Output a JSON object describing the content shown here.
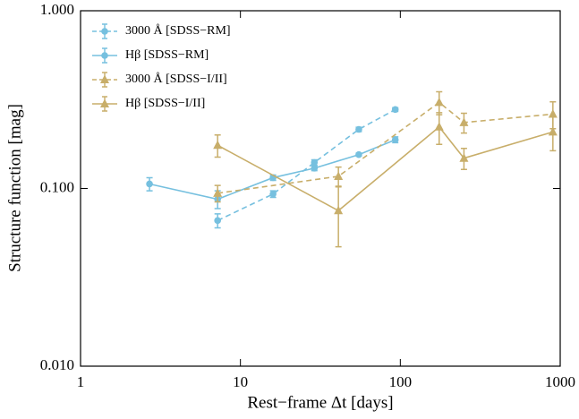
{
  "chart_data": {
    "type": "line",
    "xlabel": "Rest−frame Δt [days]",
    "ylabel": "Structure function [mag]",
    "xscale": "log",
    "yscale": "log",
    "xlim": [
      1,
      1000
    ],
    "ylim": [
      0.01,
      1
    ],
    "xticks": [
      1,
      10,
      100,
      1000
    ],
    "yticks": [
      {
        "value": 0.01,
        "label": "0.010"
      },
      {
        "value": 0.1,
        "label": "0.100"
      },
      {
        "value": 1,
        "label": "1.000"
      }
    ],
    "legend": "upper left",
    "series": [
      {
        "name": "3000 Å [SDSS−RM]",
        "color": "#76c0df",
        "dashed": true,
        "marker": "circle",
        "x": [
          7.2,
          16,
          29,
          55,
          93
        ],
        "values": [
          0.066,
          0.093,
          0.14,
          0.215,
          0.278
        ],
        "errors": [
          0.006,
          0.004,
          0.005,
          0.006,
          0.007
        ]
      },
      {
        "name": "Hβ [SDSS−RM]",
        "color": "#76c0df",
        "dashed": false,
        "marker": "circle",
        "x": [
          2.7,
          7.2,
          16,
          29,
          55,
          93
        ],
        "values": [
          0.106,
          0.087,
          0.115,
          0.13,
          0.155,
          0.188
        ],
        "errors": [
          0.009,
          0.01,
          0.004,
          0.004,
          0.003,
          0.007
        ]
      },
      {
        "name": "3000 Å [SDSS−I/II]",
        "color": "#c8ae6a",
        "dashed": true,
        "marker": "triangle",
        "x": [
          7.2,
          41,
          175,
          250,
          900
        ],
        "values": [
          0.094,
          0.117,
          0.305,
          0.235,
          0.262
        ],
        "errors": [
          0.01,
          0.015,
          0.045,
          0.03,
          0.045
        ]
      },
      {
        "name": "Hβ [SDSS−I/II]",
        "color": "#c8ae6a",
        "dashed": false,
        "marker": "triangle",
        "x": [
          7.2,
          41,
          175,
          250,
          900
        ],
        "values": [
          0.175,
          0.075,
          0.222,
          0.148,
          0.208
        ],
        "errors": [
          0.025,
          0.028,
          0.045,
          0.02,
          0.045
        ]
      }
    ]
  }
}
